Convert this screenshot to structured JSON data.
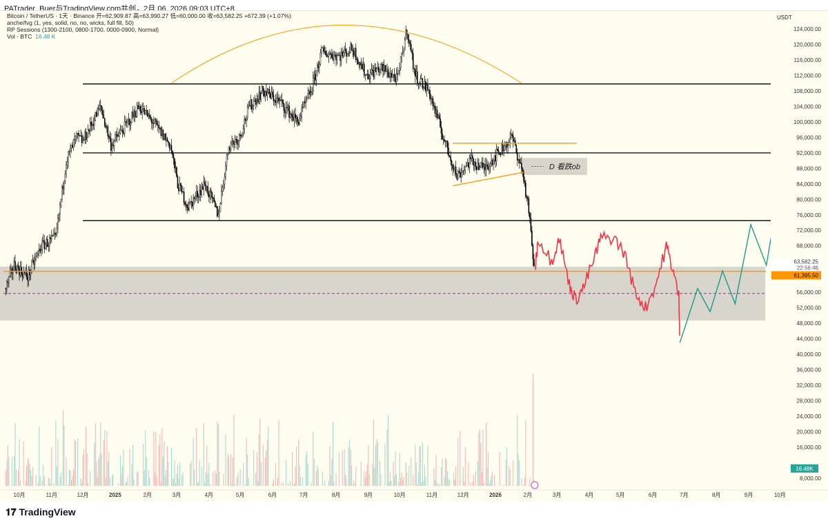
{
  "header": {
    "caption": "PATrader_Buer与TradingView.com共创，2月 06, 2026 09:03 UTC+8"
  },
  "legend": {
    "symbol_line": "Bitcoin / TetherUS · 1天 · Binance  开=62,909.87  高=63,990.27  低=60,000.00  收=63,582.25  +672.39 (+1.07%)",
    "indicator1": "anche/fvg (1, yes, solid, no, no, wicks, full fill, 50)",
    "indicator2": "RP Sessions (1300-2100, 0800-1700, 0000-0900, Normal)",
    "vol_label": "Vol · BTC",
    "vol_value": "16.48 K"
  },
  "axis": {
    "currency": "USDT",
    "last_price": "63,582.25",
    "countdown": "22:56:46",
    "level_label": "61,395.50",
    "vol_badge": "16.48K"
  },
  "annotation": {
    "ob_label": "D 看跌ob"
  },
  "footer": {
    "brand": "TradingView"
  },
  "colors": {
    "up": "#26a69a",
    "down": "#ef5350",
    "projection_red": "#f23645",
    "projection_green": "#089981",
    "orange": "#ff9800"
  },
  "chart_data": {
    "type": "candlestick",
    "x_unit": "days since 2024-09-01",
    "ylim": [
      6000,
      128000
    ],
    "yticks": [
      8000,
      12000,
      16000,
      20000,
      24000,
      28000,
      32000,
      36000,
      40000,
      44000,
      48000,
      52000,
      56000,
      60000,
      64000,
      68000,
      72000,
      76000,
      80000,
      84000,
      88000,
      92000,
      96000,
      100000,
      104000,
      108000,
      112000,
      116000,
      120000,
      124000
    ],
    "xticks": [
      {
        "d": 30,
        "label": "10月"
      },
      {
        "d": 61,
        "label": "11月"
      },
      {
        "d": 91,
        "label": "12月"
      },
      {
        "d": 122,
        "label": "2025"
      },
      {
        "d": 153,
        "label": "2月"
      },
      {
        "d": 181,
        "label": "3月"
      },
      {
        "d": 212,
        "label": "4月"
      },
      {
        "d": 242,
        "label": "5月"
      },
      {
        "d": 273,
        "label": "6月"
      },
      {
        "d": 303,
        "label": "7月"
      },
      {
        "d": 334,
        "label": "8月"
      },
      {
        "d": 365,
        "label": "9月"
      },
      {
        "d": 395,
        "label": "10月"
      },
      {
        "d": 426,
        "label": "11月"
      },
      {
        "d": 456,
        "label": "12月"
      },
      {
        "d": 487,
        "label": "2026"
      },
      {
        "d": 518,
        "label": "2月"
      },
      {
        "d": 546,
        "label": "3月"
      },
      {
        "d": 577,
        "label": "4月"
      },
      {
        "d": 607,
        "label": "5月"
      },
      {
        "d": 638,
        "label": "6月"
      },
      {
        "d": 668,
        "label": "7月"
      },
      {
        "d": 699,
        "label": "8月"
      },
      {
        "d": 730,
        "label": "9月"
      },
      {
        "d": 760,
        "label": "10月"
      }
    ],
    "price_path": [
      [
        17,
        57000
      ],
      [
        25,
        63000
      ],
      [
        38,
        60000
      ],
      [
        51,
        68000
      ],
      [
        65,
        70000
      ],
      [
        75,
        90000
      ],
      [
        85,
        96000
      ],
      [
        91,
        95000
      ],
      [
        108,
        104000
      ],
      [
        118,
        94000
      ],
      [
        135,
        100000
      ],
      [
        145,
        104000
      ],
      [
        158,
        100000
      ],
      [
        175,
        94000
      ],
      [
        182,
        84000
      ],
      [
        192,
        78000
      ],
      [
        208,
        84000
      ],
      [
        221,
        76000
      ],
      [
        231,
        94000
      ],
      [
        241,
        96000
      ],
      [
        251,
        104000
      ],
      [
        264,
        108000
      ],
      [
        281,
        105000
      ],
      [
        297,
        100000
      ],
      [
        310,
        108000
      ],
      [
        320,
        118000
      ],
      [
        337,
        117000
      ],
      [
        350,
        119000
      ],
      [
        363,
        112000
      ],
      [
        377,
        114000
      ],
      [
        393,
        111000
      ],
      [
        402,
        124000
      ],
      [
        410,
        112000
      ],
      [
        423,
        108000
      ],
      [
        437,
        96000
      ],
      [
        450,
        86000
      ],
      [
        463,
        90000
      ],
      [
        476,
        88000
      ],
      [
        503,
        96000
      ],
      [
        513,
        87000
      ],
      [
        519,
        77000
      ],
      [
        524,
        62000
      ]
    ],
    "projection_red": [
      [
        525,
        62000
      ],
      [
        528,
        70000
      ],
      [
        541,
        64000
      ],
      [
        548,
        70000
      ],
      [
        558,
        58000
      ],
      [
        564,
        54000
      ],
      [
        571,
        57000
      ],
      [
        581,
        64000
      ],
      [
        588,
        70000
      ],
      [
        601,
        70000
      ],
      [
        611,
        66000
      ],
      [
        621,
        56000
      ],
      [
        631,
        52000
      ],
      [
        641,
        58000
      ],
      [
        651,
        68000
      ],
      [
        657,
        62000
      ],
      [
        663,
        55000
      ],
      [
        664,
        44000
      ]
    ],
    "projection_green": [
      [
        664,
        43000
      ],
      [
        681,
        57000
      ],
      [
        693,
        51000
      ],
      [
        705,
        61500
      ],
      [
        717,
        53000
      ],
      [
        732,
        73500
      ],
      [
        747,
        63000
      ],
      [
        764,
        90000
      ]
    ],
    "levels": [
      {
        "price": 109800,
        "color": "#000"
      },
      {
        "price": 92000,
        "color": "#000"
      },
      {
        "price": 74500,
        "color": "#000"
      },
      {
        "price": 61395.5,
        "color": "#ff9800"
      },
      {
        "price": 55700,
        "color": "#9c27b0",
        "dash": true
      }
    ],
    "zones": [
      {
        "from_d": -20,
        "to_d": 746,
        "low": 48700,
        "high": 62600
      },
      {
        "from_d": 512,
        "to_d": 575,
        "low": 86300,
        "high": 90700
      }
    ],
    "trendlines": [
      {
        "a": [
          446,
          94500
        ],
        "b": [
          565,
          94500
        ]
      },
      {
        "a": [
          446,
          83500
        ],
        "b": [
          514,
          87000
        ]
      }
    ],
    "arc": {
      "from": [
        176,
        110000
      ],
      "peak": [
        340,
        125000
      ],
      "to": [
        512,
        110000
      ]
    }
  }
}
